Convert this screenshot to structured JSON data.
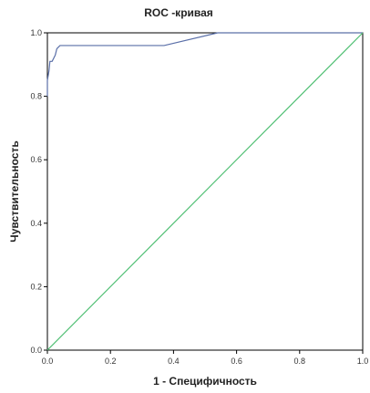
{
  "chart_data": {
    "type": "line",
    "title": "ROC -кривая",
    "xlabel": "1 - Специфичность",
    "ylabel": "Чувствительность",
    "xlim": [
      0,
      1
    ],
    "ylim": [
      0,
      1
    ],
    "x_ticks": [
      "0.0",
      "0.2",
      "0.4",
      "0.6",
      "0.8",
      "1.0"
    ],
    "y_ticks": [
      "0.0",
      "0.2",
      "0.4",
      "0.6",
      "0.8",
      "1.0"
    ],
    "grid": false,
    "series": [
      {
        "color": "#5a6fa8",
        "points": [
          [
            0.0,
            0.8
          ],
          [
            0.0,
            0.85
          ],
          [
            0.005,
            0.88
          ],
          [
            0.008,
            0.91
          ],
          [
            0.015,
            0.91
          ],
          [
            0.02,
            0.92
          ],
          [
            0.025,
            0.93
          ],
          [
            0.03,
            0.95
          ],
          [
            0.04,
            0.96
          ],
          [
            0.37,
            0.96
          ],
          [
            0.54,
            1.0
          ],
          [
            1.0,
            1.0
          ]
        ]
      },
      {
        "color": "#4fbf73",
        "points": [
          [
            0.0,
            0.0
          ],
          [
            1.0,
            1.0
          ]
        ]
      }
    ]
  }
}
